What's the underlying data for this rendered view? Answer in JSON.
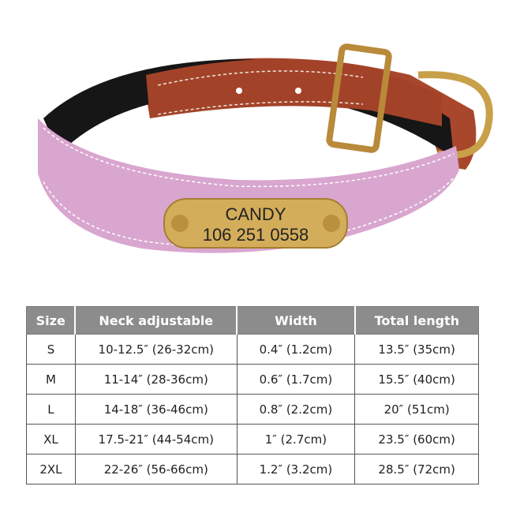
{
  "product": {
    "nameplate": {
      "name": "CANDY",
      "phone": "106 251 0558"
    },
    "colors": {
      "collar": "#d9a6d0",
      "strap": "#a8472c",
      "hardware": "#c9a04a",
      "lining": "#111111"
    }
  },
  "size_table": {
    "headers": [
      "Size",
      "Neck adjustable",
      "Width",
      "Total length"
    ],
    "rows": [
      [
        "S",
        "10-12.5″ (26-32cm)",
        "0.4″ (1.2cm)",
        "13.5″ (35cm)"
      ],
      [
        "M",
        "11-14″ (28-36cm)",
        "0.6″ (1.7cm)",
        "15.5″ (40cm)"
      ],
      [
        "L",
        "14-18″ (36-46cm)",
        "0.8″ (2.2cm)",
        "20″ (51cm)"
      ],
      [
        "XL",
        "17.5-21″ (44-54cm)",
        "1″ (2.7cm)",
        "23.5″ (60cm)"
      ],
      [
        "2XL",
        "22-26″ (56-66cm)",
        "1.2″ (3.2cm)",
        "28.5″ (72cm)"
      ]
    ]
  }
}
